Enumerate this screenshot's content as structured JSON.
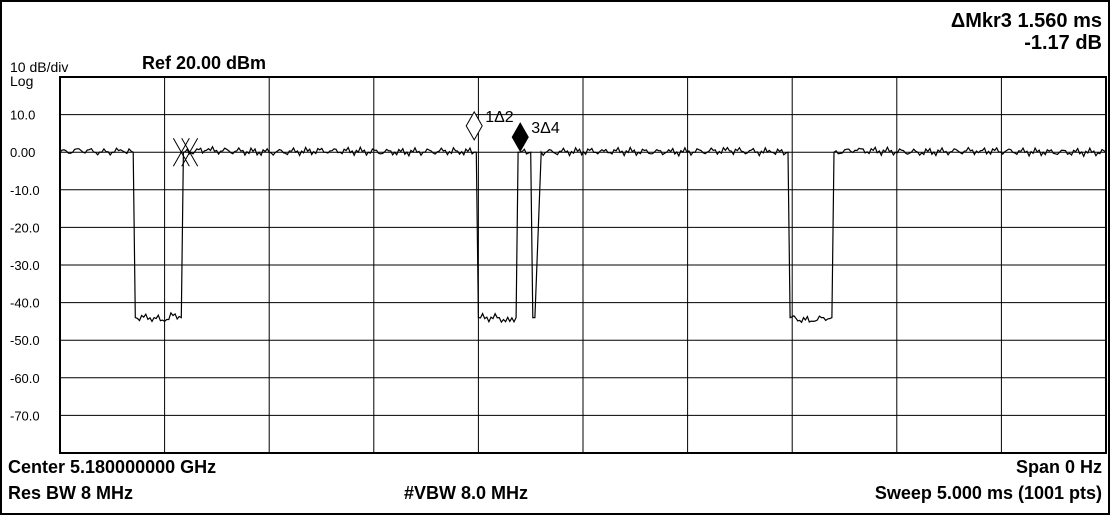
{
  "header": {
    "scale_per_div": "10 dB/div",
    "scale_type": "Log",
    "ref_level": "Ref 20.00 dBm",
    "marker_line1": "ΔMkr3 1.560 ms",
    "marker_line2": "-1.17 dB"
  },
  "footer": {
    "center": "Center 5.180000000 GHz",
    "span": "Span 0 Hz",
    "res_bw": "Res BW 8 MHz",
    "vbw": "#VBW 8.0 MHz",
    "sweep": "Sweep  5.000 ms (1001 pts)"
  },
  "colors": {
    "trace": "#000000",
    "grid": "#000000",
    "background": "#ffffff"
  },
  "chart_data": {
    "type": "line",
    "title": "",
    "xlabel": "",
    "ylabel": "",
    "x_unit": "ms",
    "xlim": [
      0,
      5.0
    ],
    "ylim": [
      -80,
      20
    ],
    "y_ticks": [
      "10.0",
      "0.00",
      "-10.0",
      "-20.0",
      "-30.0",
      "-40.0",
      "-50.0",
      "-60.0",
      "-70.0"
    ],
    "y_tick_values": [
      10,
      0,
      -10,
      -20,
      -30,
      -40,
      -50,
      -60,
      -70
    ],
    "grid": true,
    "series": [
      {
        "x": [
          0,
          0.1,
          0.2,
          0.3,
          0.35,
          0.36,
          0.45,
          0.5,
          0.55,
          0.58,
          0.59,
          0.7,
          1.0,
          1.3,
          1.6,
          1.9,
          1.99,
          2.0,
          2.1,
          2.15,
          2.18,
          2.19,
          2.2,
          2.25,
          2.26,
          2.27,
          2.3,
          2.6,
          2.9,
          3.2,
          3.4,
          3.48,
          3.49,
          3.6,
          3.65,
          3.69,
          3.7,
          3.8,
          4.1,
          4.4,
          4.7,
          5.0
        ],
        "values": [
          0,
          0.5,
          0,
          0.3,
          0,
          -44,
          -44,
          -45,
          -43,
          -44,
          0,
          0.5,
          0,
          0.4,
          0,
          0.3,
          0,
          -44,
          -44,
          -45,
          -44,
          0,
          0,
          0,
          -44,
          -44,
          0,
          0.3,
          0,
          0.4,
          0,
          0,
          -44,
          -45,
          -44,
          -44,
          0,
          0.5,
          0,
          0.4,
          0,
          0
        ]
      }
    ],
    "markers": [
      {
        "label": "1Δ2",
        "x": 1.98,
        "y": 7.0,
        "style": "open-diamond"
      },
      {
        "label": "3Δ4",
        "x": 2.2,
        "y": 4.0,
        "style": "filled-diamond"
      },
      {
        "label": "",
        "x": 0.58,
        "y": 0.0,
        "style": "cross"
      },
      {
        "label": "",
        "x": 0.62,
        "y": 0.0,
        "style": "cross"
      }
    ]
  }
}
